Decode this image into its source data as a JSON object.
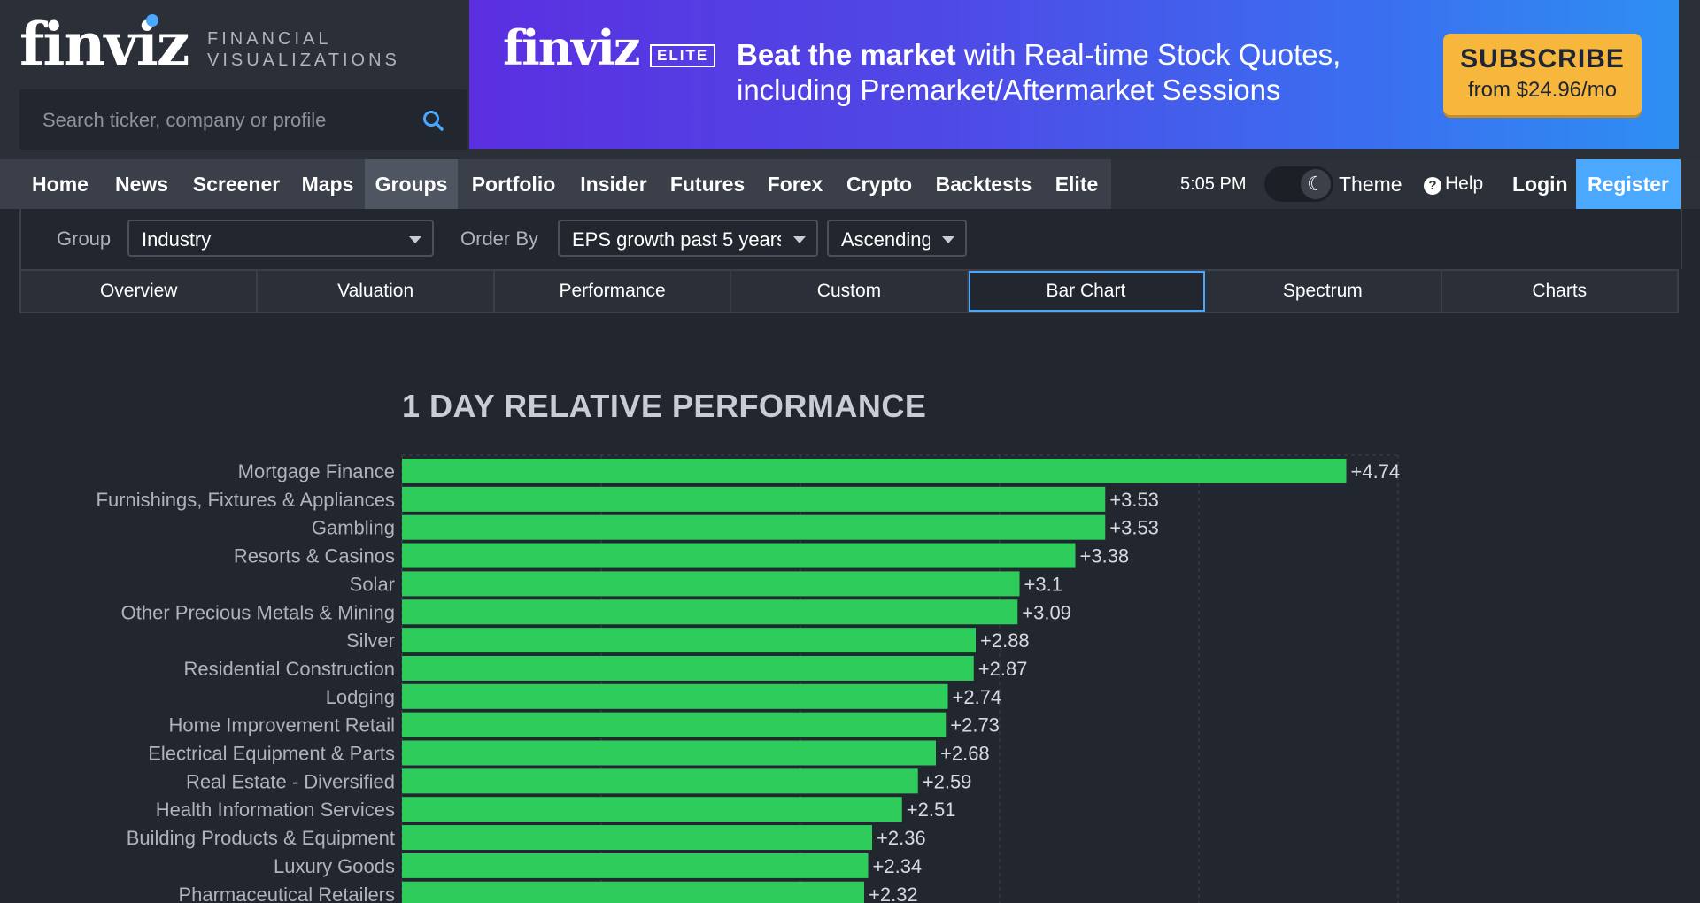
{
  "header": {
    "logo_text": "finviz",
    "logo_tagline": "FINANCIAL VISUALIZATIONS",
    "search": {
      "placeholder": "Search ticker, company or profile",
      "icon": "search-icon"
    }
  },
  "banner": {
    "logo": "finviz",
    "badge": "ELITE",
    "headline_bold": "Beat the market",
    "headline_rest": " with Real-time Stock Quotes,",
    "headline_line2": "including Premarket/Aftermarket Sessions",
    "cta_title": "SUBSCRIBE",
    "cta_sub": "from $24.96/mo"
  },
  "nav": {
    "items": [
      {
        "label": "Home"
      },
      {
        "label": "News"
      },
      {
        "label": "Screener"
      },
      {
        "label": "Maps"
      },
      {
        "label": "Groups",
        "active": true
      },
      {
        "label": "Portfolio"
      },
      {
        "label": "Insider"
      },
      {
        "label": "Futures"
      },
      {
        "label": "Forex"
      },
      {
        "label": "Crypto"
      },
      {
        "label": "Backtests"
      },
      {
        "label": "Elite"
      }
    ],
    "time": "5:05 PM",
    "theme_label": "Theme",
    "help_label": "Help",
    "login_label": "Login",
    "register_label": "Register"
  },
  "controls": {
    "group_label": "Group",
    "group_value": "Industry",
    "order_label": "Order By",
    "order_value": "EPS growth past 5 years",
    "direction_value": "Ascending"
  },
  "tabs": [
    {
      "label": "Overview"
    },
    {
      "label": "Valuation"
    },
    {
      "label": "Performance"
    },
    {
      "label": "Custom"
    },
    {
      "label": "Bar Chart",
      "active": true
    },
    {
      "label": "Spectrum"
    },
    {
      "label": "Charts"
    }
  ],
  "chart_data": {
    "type": "bar",
    "orientation": "horizontal",
    "title": "1 DAY RELATIVE PERFORMANCE",
    "categories": [
      "Mortgage Finance",
      "Furnishings, Fixtures & Appliances",
      "Gambling",
      "Resorts & Casinos",
      "Solar",
      "Other Precious Metals & Mining",
      "Silver",
      "Residential Construction",
      "Lodging",
      "Home Improvement Retail",
      "Electrical Equipment & Parts",
      "Real Estate - Diversified",
      "Health Information Services",
      "Building Products & Equipment",
      "Luxury Goods",
      "Pharmaceutical Retailers"
    ],
    "values": [
      4.74,
      3.53,
      3.53,
      3.38,
      3.1,
      3.09,
      2.88,
      2.87,
      2.74,
      2.73,
      2.68,
      2.59,
      2.51,
      2.36,
      2.34,
      2.32
    ],
    "value_labels": [
      "+4.74",
      "+3.53",
      "+3.53",
      "+3.38",
      "+3.1",
      "+3.09",
      "+2.88",
      "+2.87",
      "+2.74",
      "+2.73",
      "+2.68",
      "+2.59",
      "+2.51",
      "+2.36",
      "+2.34",
      "+2.32"
    ],
    "xlim": [
      0,
      5
    ],
    "bar_color": "#2ecc5b",
    "grid": true
  }
}
